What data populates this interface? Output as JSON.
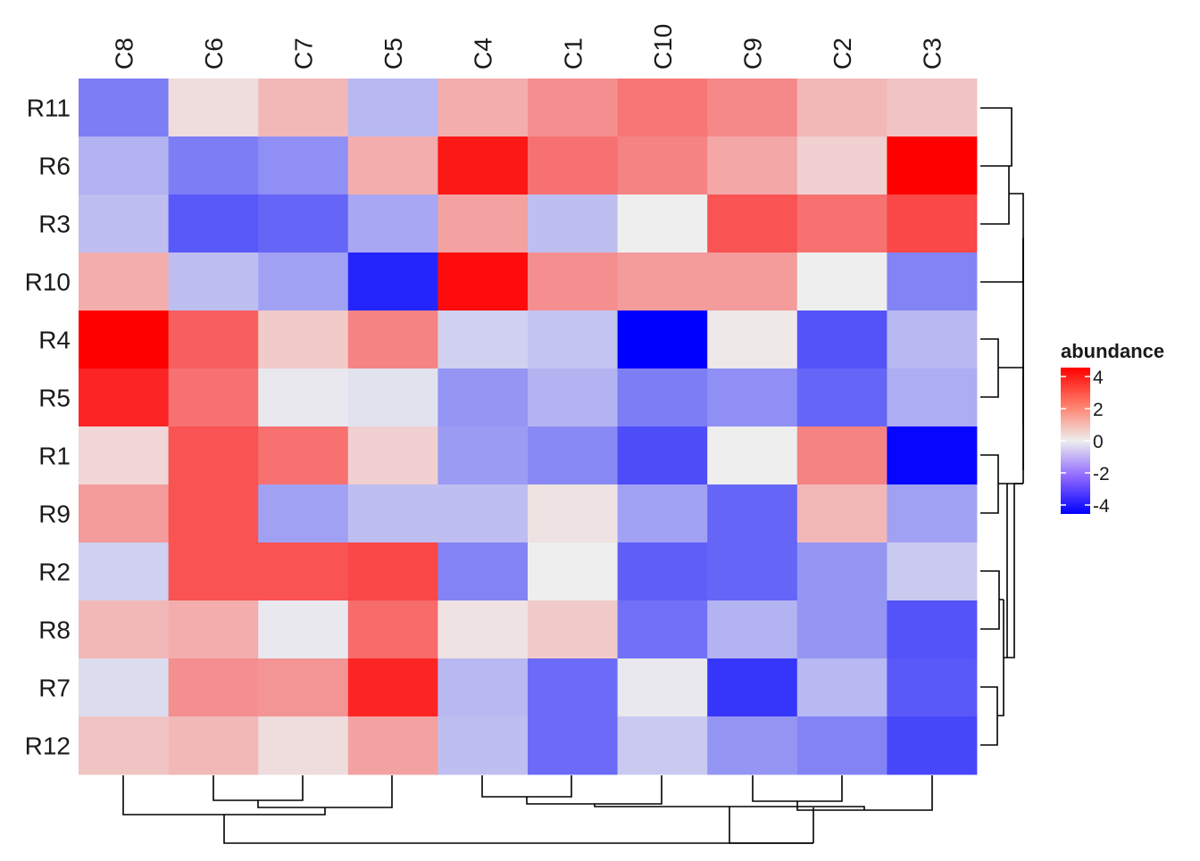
{
  "chart_data": {
    "type": "heatmap",
    "title": "",
    "columns": [
      "C8",
      "C6",
      "C7",
      "C5",
      "C4",
      "C1",
      "C10",
      "C9",
      "C2",
      "C3"
    ],
    "rows": [
      "R11",
      "R6",
      "R3",
      "R10",
      "R4",
      "R5",
      "R1",
      "R9",
      "R2",
      "R8",
      "R7",
      "R12"
    ],
    "values": [
      [
        -1.9,
        0.3,
        0.9,
        -0.9,
        1.1,
        1.6,
        2.0,
        1.7,
        0.9,
        0.7
      ],
      [
        -1.0,
        -1.9,
        -1.6,
        1.1,
        3.6,
        2.1,
        1.8,
        1.2,
        0.5,
        4.8
      ],
      [
        -0.8,
        -2.5,
        -2.3,
        -1.2,
        1.3,
        -0.8,
        0.0,
        2.6,
        2.1,
        2.8
      ],
      [
        1.1,
        -0.8,
        -1.3,
        -3.4,
        3.8,
        1.6,
        1.4,
        1.4,
        0.0,
        -1.8
      ],
      [
        4.8,
        2.4,
        0.6,
        1.8,
        -0.5,
        -0.7,
        -4.0,
        0.1,
        -2.6,
        -0.9
      ],
      [
        3.4,
        2.1,
        -0.1,
        -0.2,
        -1.5,
        -1.0,
        -1.9,
        -1.6,
        -2.3,
        -1.1
      ],
      [
        0.4,
        2.6,
        2.1,
        0.5,
        -1.4,
        -1.7,
        -2.7,
        0.0,
        1.8,
        -3.9
      ],
      [
        1.4,
        2.6,
        -1.3,
        -0.8,
        -0.8,
        0.2,
        -1.3,
        -2.3,
        0.9,
        -1.3
      ],
      [
        -0.5,
        2.6,
        2.6,
        2.8,
        -1.8,
        0.0,
        -2.4,
        -2.3,
        -1.5,
        -0.6
      ],
      [
        0.9,
        1.1,
        -0.1,
        2.2,
        0.2,
        0.6,
        -2.1,
        -1.0,
        -1.5,
        -2.6
      ],
      [
        -0.3,
        1.6,
        1.5,
        3.4,
        -0.9,
        -2.2,
        -0.1,
        -3.1,
        -0.9,
        -2.5
      ],
      [
        0.7,
        0.9,
        0.3,
        1.3,
        -0.8,
        -2.2,
        -0.6,
        -1.5,
        -1.8,
        -2.8
      ]
    ],
    "color_scale": {
      "min": -4,
      "mid": 0,
      "max": 4,
      "low": "#0000FF",
      "midColor": "#EEEEEE",
      "high": "#FF0000"
    },
    "legend": {
      "title": "abundance",
      "ticks": [
        "4",
        "2",
        "0",
        "-2",
        "-4"
      ],
      "tick_values": [
        4,
        2,
        0,
        -2,
        -4
      ],
      "placement": "right"
    },
    "column_dendrogram": "bottom",
    "row_dendrogram": "right",
    "grid": false
  }
}
